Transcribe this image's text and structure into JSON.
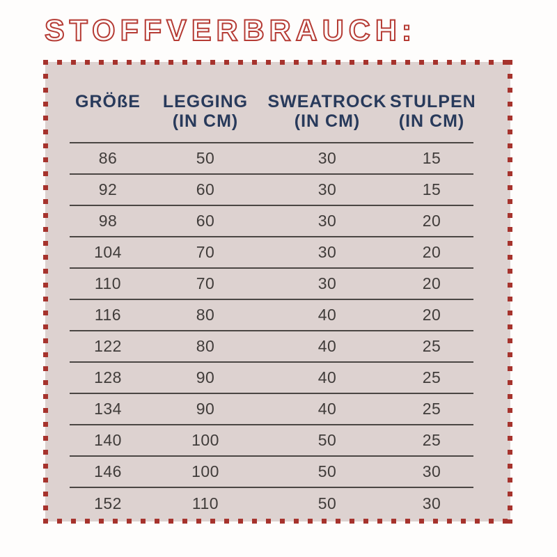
{
  "page": {
    "title": "STOFFVERBRAUCH:"
  },
  "colors": {
    "title_outline_red": "#b53b34",
    "dot_border_red": "#a6332d",
    "panel_background": "#ddd2d0",
    "header_navy": "#283a5b",
    "row_text": "#403c3a",
    "divider_line": "#4a4643",
    "page_background": "#fefdfc"
  },
  "table": {
    "columns": [
      {
        "key": "groesse",
        "label": "GRÖßE",
        "sub": ""
      },
      {
        "key": "legging",
        "label": "LEGGING",
        "sub": "(IN CM)"
      },
      {
        "key": "sweatrock",
        "label": "SWEATROCK",
        "sub": "(IN CM)"
      },
      {
        "key": "stulpen",
        "label": "STULPEN",
        "sub": "(IN CM)"
      }
    ],
    "rows": [
      [
        "86",
        "50",
        "30",
        "15"
      ],
      [
        "92",
        "60",
        "30",
        "15"
      ],
      [
        "98",
        "60",
        "30",
        "20"
      ],
      [
        "104",
        "70",
        "30",
        "20"
      ],
      [
        "110",
        "70",
        "30",
        "20"
      ],
      [
        "116",
        "80",
        "40",
        "20"
      ],
      [
        "122",
        "80",
        "40",
        "25"
      ],
      [
        "128",
        "90",
        "40",
        "25"
      ],
      [
        "134",
        "90",
        "40",
        "25"
      ],
      [
        "140",
        "100",
        "50",
        "25"
      ],
      [
        "146",
        "100",
        "50",
        "30"
      ],
      [
        "152",
        "110",
        "50",
        "30"
      ]
    ]
  }
}
